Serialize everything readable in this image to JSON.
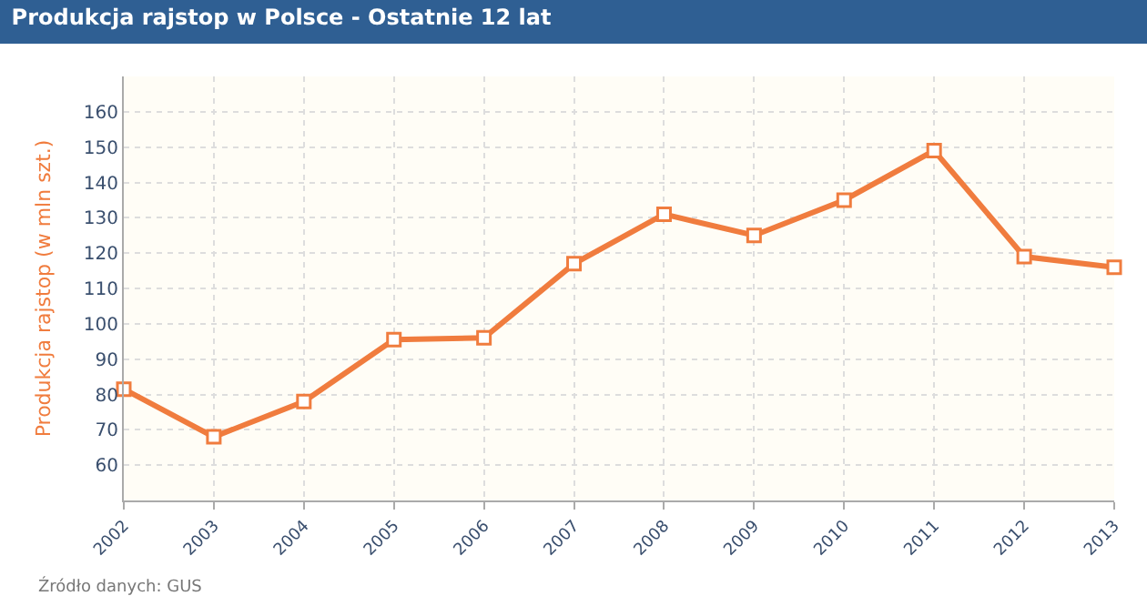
{
  "chart_data": {
    "type": "line",
    "title": "Produkcja rajstop w Polsce - Ostatnie 12 lat",
    "ylabel": "Produkcja rajstop (w mln szt.)",
    "x": [
      2002,
      2003,
      2004,
      2005,
      2006,
      2007,
      2008,
      2009,
      2010,
      2011,
      2012,
      2013
    ],
    "series": [
      {
        "color": "#f07c3e",
        "values": [
          81.5,
          68,
          78,
          95.5,
          96,
          117,
          131,
          125,
          135,
          149,
          119,
          116
        ]
      }
    ],
    "xlim": [
      2002,
      2013
    ],
    "xticks": [
      2002,
      2003,
      2004,
      2005,
      2006,
      2007,
      2008,
      2009,
      2010,
      2011,
      2012,
      2013
    ],
    "ylim": [
      50,
      170
    ],
    "yticks": [
      60,
      70,
      80,
      90,
      100,
      110,
      120,
      130,
      140,
      150,
      160
    ],
    "grid": true,
    "marker": "square",
    "line_style": "solid",
    "annotations": [
      "Źródło danych: GUS"
    ]
  }
}
